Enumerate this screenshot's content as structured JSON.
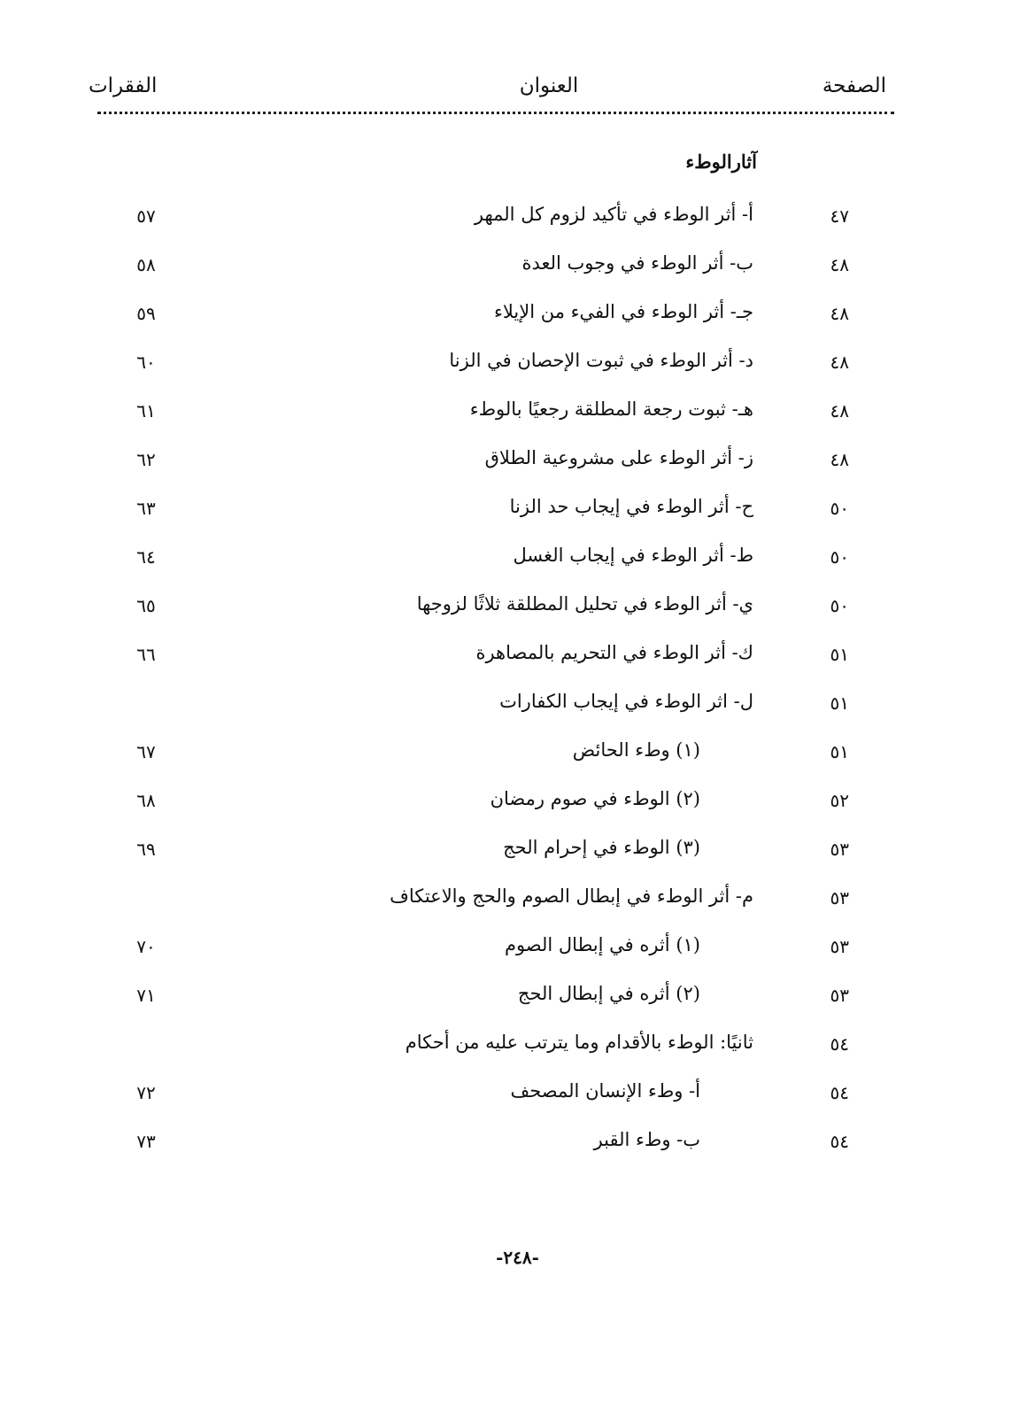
{
  "header": {
    "page": "الصفحة",
    "title": "العنوان",
    "paragraphs": "الفقرات"
  },
  "section_title": "آثارالوطء",
  "rows": [
    {
      "page": "٤٧",
      "title": "أ- أثر الوطء في تأكيد لزوم كل المهر",
      "para": "٥٧",
      "sub": false
    },
    {
      "page": "٤٨",
      "title": "ب- أثر الوطء في وجوب العدة",
      "para": "٥٨",
      "sub": false
    },
    {
      "page": "٤٨",
      "title": "جـ- أثر الوطء في الفيء من الإيلاء",
      "para": "٥٩",
      "sub": false
    },
    {
      "page": "٤٨",
      "title": "د- أثر الوطء في ثبوت الإحصان في الزنا",
      "para": "٦٠",
      "sub": false
    },
    {
      "page": "٤٨",
      "title": "هـ- ثبوت رجعة المطلقة رجعيًا بالوطء",
      "para": "٦١",
      "sub": false
    },
    {
      "page": "٤٨",
      "title": "ز- أثر الوطء على مشروعية الطلاق",
      "para": "٦٢",
      "sub": false
    },
    {
      "page": "٥٠",
      "title": "ح- أثر الوطء في إيجاب حد الزنا",
      "para": "٦٣",
      "sub": false
    },
    {
      "page": "٥٠",
      "title": "ط- أثر الوطء في إيجاب الغسل",
      "para": "٦٤",
      "sub": false
    },
    {
      "page": "٥٠",
      "title": "ي- أثر الوطء في تحليل المطلقة ثلاثًا لزوجها",
      "para": "٦٥",
      "sub": false
    },
    {
      "page": "٥١",
      "title": "ك- أثر الوطء في التحريم بالمصاهرة",
      "para": "٦٦",
      "sub": false
    },
    {
      "page": "٥١",
      "title": "ل- اثر الوطء في إيجاب الكفارات",
      "para": "",
      "sub": false
    },
    {
      "page": "٥١",
      "title": "(١) وطء الحائض",
      "para": "٦٧",
      "sub": true
    },
    {
      "page": "٥٢",
      "title": "(٢) الوطء في صوم رمضان",
      "para": "٦٨",
      "sub": true
    },
    {
      "page": "٥٣",
      "title": "(٣) الوطء في إحرام الحج",
      "para": "٦٩",
      "sub": true
    },
    {
      "page": "٥٣",
      "title": "م- أثر الوطء في إبطال الصوم والحج والاعتكاف",
      "para": "",
      "sub": false
    },
    {
      "page": "٥٣",
      "title": "(١) أثره في إبطال الصوم",
      "para": "٧٠",
      "sub": true
    },
    {
      "page": "٥٣",
      "title": "(٢) أثره في إبطال الحج",
      "para": "٧١",
      "sub": true
    },
    {
      "page": "٥٤",
      "title": "ثانيًا: الوطء بالأقدام وما يترتب عليه من أحكام",
      "para": "",
      "sub": false
    },
    {
      "page": "٥٤",
      "title": "أ- وطء الإنسان المصحف",
      "para": "٧٢",
      "sub": true
    },
    {
      "page": "٥٤",
      "title": "ب- وطء القبر",
      "para": "٧٣",
      "sub": true
    }
  ],
  "footer": {
    "page_number": "-٢٤٨-"
  }
}
